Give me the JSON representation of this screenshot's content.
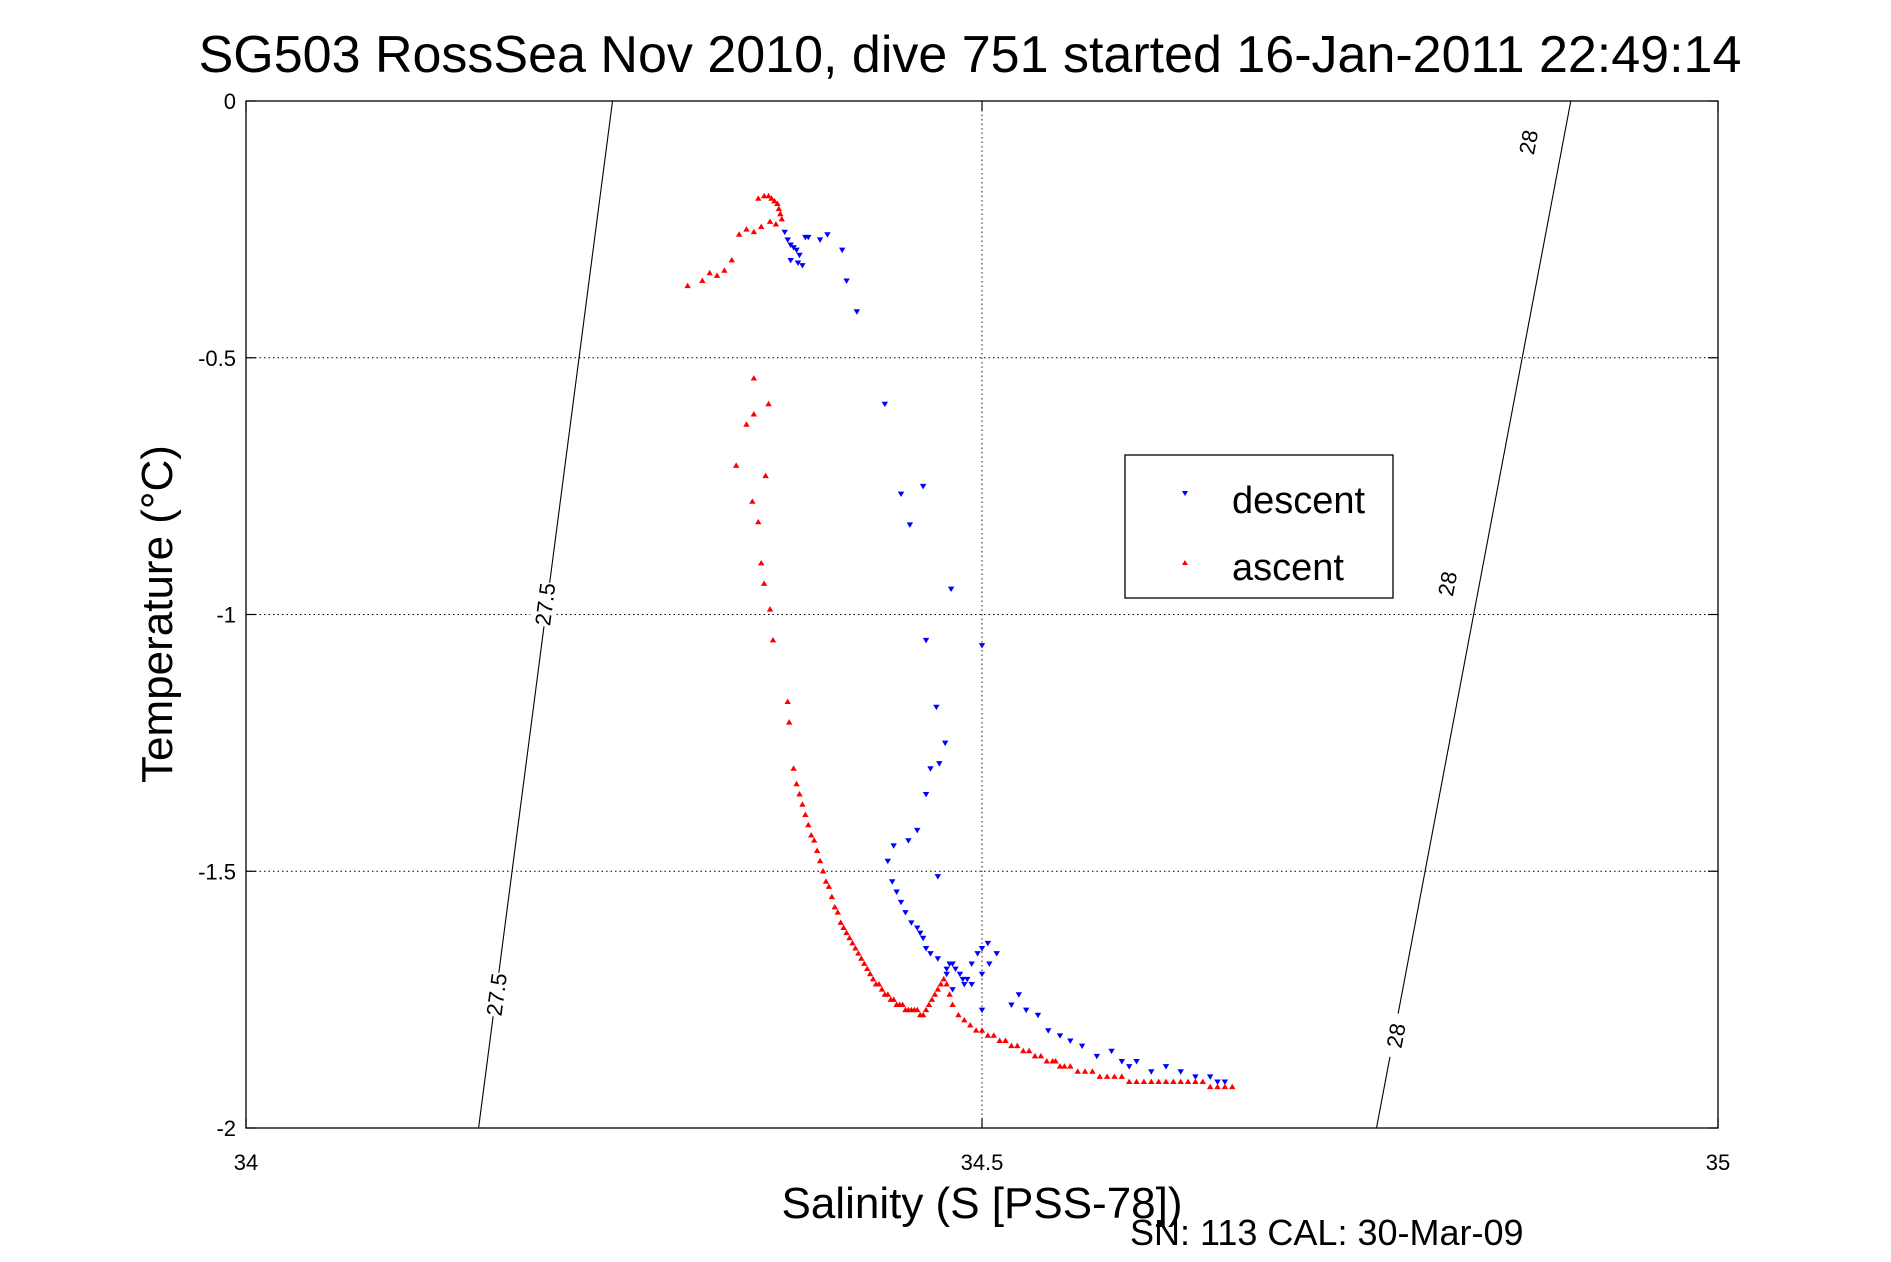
{
  "chart_data": {
    "type": "scatter",
    "title": "SG503 RossSea Nov 2010, dive 751 started 16-Jan-2011 22:49:14",
    "xlabel": "Salinity (S [PSS-78])",
    "ylabel": "Temperature (°C)",
    "footer": "SN: 113  CAL: 30-Mar-09",
    "xlim": [
      34,
      35
    ],
    "ylim": [
      -2,
      0
    ],
    "x_ticks": [
      34,
      34.5,
      35
    ],
    "x_tick_labels": [
      "34",
      "34.5",
      "35"
    ],
    "y_ticks": [
      0,
      -0.5,
      -1,
      -1.5,
      -2
    ],
    "y_tick_labels": [
      "0",
      "-0.5",
      "-1",
      "-1.5",
      "-2"
    ],
    "grid": true,
    "legend_position": "center-right",
    "series": [
      {
        "name": "descent",
        "color": "#0000ff",
        "marker": "triangle-down",
        "x": [
          34.366,
          34.368,
          34.37,
          34.372,
          34.374,
          34.376,
          34.37,
          34.375,
          34.378,
          34.38,
          34.382,
          34.39,
          34.395,
          34.405,
          34.408,
          34.415,
          34.434,
          34.445,
          34.451,
          34.46,
          34.479,
          34.462,
          34.475,
          34.471,
          34.465,
          34.469,
          34.5,
          34.462,
          34.456,
          34.47,
          34.45,
          34.44,
          34.436,
          34.439,
          34.442,
          34.445,
          34.448,
          34.452,
          34.456,
          34.458,
          34.46,
          34.462,
          34.465,
          34.47,
          34.476,
          34.48,
          34.485,
          34.488,
          34.49,
          34.493,
          34.497,
          34.5,
          34.504,
          34.51,
          34.505,
          34.5,
          34.493,
          34.487,
          34.482,
          34.478,
          34.476,
          34.48,
          34.5,
          34.52,
          34.525,
          34.53,
          34.538,
          34.545,
          34.553,
          34.56,
          34.568,
          34.578,
          34.588,
          34.595,
          34.6,
          34.605,
          34.615,
          34.625,
          34.635,
          34.645,
          34.655,
          34.66,
          34.665
        ],
        "y": [
          -0.255,
          -0.27,
          -0.28,
          -0.285,
          -0.29,
          -0.3,
          -0.31,
          -0.315,
          -0.32,
          -0.265,
          -0.265,
          -0.27,
          -0.26,
          -0.29,
          -0.35,
          -0.41,
          -0.59,
          -0.765,
          -0.825,
          -0.75,
          -0.95,
          -1.05,
          -1.25,
          -1.29,
          -1.3,
          -1.18,
          -1.06,
          -1.35,
          -1.42,
          -1.51,
          -1.44,
          -1.45,
          -1.48,
          -1.52,
          -1.54,
          -1.56,
          -1.58,
          -1.6,
          -1.61,
          -1.62,
          -1.63,
          -1.65,
          -1.66,
          -1.67,
          -1.69,
          -1.68,
          -1.7,
          -1.72,
          -1.71,
          -1.68,
          -1.66,
          -1.65,
          -1.64,
          -1.66,
          -1.68,
          -1.7,
          -1.72,
          -1.71,
          -1.69,
          -1.68,
          -1.7,
          -1.73,
          -1.77,
          -1.76,
          -1.74,
          -1.77,
          -1.78,
          -1.81,
          -1.82,
          -1.83,
          -1.84,
          -1.86,
          -1.85,
          -1.87,
          -1.88,
          -1.87,
          -1.89,
          -1.88,
          -1.89,
          -1.9,
          -1.9,
          -1.91,
          -1.91
        ]
      },
      {
        "name": "ascent",
        "color": "#ff0000",
        "marker": "triangle-up",
        "x": [
          34.348,
          34.352,
          34.355,
          34.357,
          34.359,
          34.361,
          34.362,
          34.363,
          34.364,
          34.36,
          34.356,
          34.35,
          34.345,
          34.34,
          34.335,
          34.33,
          34.325,
          34.32,
          34.315,
          34.31,
          34.3,
          34.345,
          34.355,
          34.345,
          34.34,
          34.353,
          34.333,
          34.344,
          34.348,
          34.35,
          34.352,
          34.356,
          34.358,
          34.368,
          34.369,
          34.372,
          34.374,
          34.376,
          34.378,
          34.38,
          34.382,
          34.384,
          34.386,
          34.388,
          34.39,
          34.392,
          34.394,
          34.396,
          34.398,
          34.4,
          34.402,
          34.404,
          34.406,
          34.408,
          34.41,
          34.412,
          34.414,
          34.416,
          34.418,
          34.42,
          34.422,
          34.424,
          34.426,
          34.428,
          34.43,
          34.432,
          34.434,
          34.436,
          34.438,
          34.44,
          34.442,
          34.444,
          34.446,
          34.448,
          34.45,
          34.452,
          34.454,
          34.456,
          34.458,
          34.46,
          34.462,
          34.464,
          34.466,
          34.468,
          34.47,
          34.472,
          34.474,
          34.476,
          34.478,
          34.48,
          34.484,
          34.488,
          34.492,
          34.496,
          34.5,
          34.504,
          34.508,
          34.512,
          34.516,
          34.52,
          34.524,
          34.528,
          34.532,
          34.536,
          34.54,
          34.544,
          34.548,
          34.55,
          34.553,
          34.556,
          34.56,
          34.565,
          34.57,
          34.575,
          34.58,
          34.585,
          34.59,
          34.595,
          34.6,
          34.605,
          34.61,
          34.615,
          34.62,
          34.625,
          34.63,
          34.635,
          34.64,
          34.645,
          34.65,
          34.655,
          34.66,
          34.665,
          34.67
        ],
        "y": [
          -0.19,
          -0.185,
          -0.185,
          -0.19,
          -0.195,
          -0.2,
          -0.21,
          -0.22,
          -0.23,
          -0.24,
          -0.235,
          -0.245,
          -0.255,
          -0.25,
          -0.26,
          -0.31,
          -0.33,
          -0.34,
          -0.335,
          -0.35,
          -0.36,
          -0.54,
          -0.59,
          -0.61,
          -0.63,
          -0.73,
          -0.71,
          -0.78,
          -0.82,
          -0.9,
          -0.94,
          -0.99,
          -1.05,
          -1.17,
          -1.21,
          -1.3,
          -1.33,
          -1.35,
          -1.37,
          -1.39,
          -1.41,
          -1.43,
          -1.44,
          -1.46,
          -1.48,
          -1.5,
          -1.52,
          -1.53,
          -1.55,
          -1.57,
          -1.58,
          -1.6,
          -1.61,
          -1.62,
          -1.63,
          -1.64,
          -1.65,
          -1.66,
          -1.67,
          -1.68,
          -1.69,
          -1.7,
          -1.71,
          -1.72,
          -1.72,
          -1.73,
          -1.74,
          -1.74,
          -1.75,
          -1.75,
          -1.76,
          -1.76,
          -1.76,
          -1.77,
          -1.77,
          -1.77,
          -1.77,
          -1.77,
          -1.78,
          -1.78,
          -1.77,
          -1.76,
          -1.75,
          -1.74,
          -1.73,
          -1.72,
          -1.71,
          -1.72,
          -1.74,
          -1.76,
          -1.78,
          -1.79,
          -1.8,
          -1.81,
          -1.81,
          -1.82,
          -1.82,
          -1.83,
          -1.83,
          -1.84,
          -1.84,
          -1.85,
          -1.85,
          -1.86,
          -1.86,
          -1.87,
          -1.87,
          -1.87,
          -1.88,
          -1.88,
          -1.88,
          -1.89,
          -1.89,
          -1.89,
          -1.9,
          -1.9,
          -1.9,
          -1.9,
          -1.91,
          -1.91,
          -1.91,
          -1.91,
          -1.91,
          -1.91,
          -1.91,
          -1.91,
          -1.91,
          -1.91,
          -1.91,
          -1.92,
          -1.92,
          -1.92,
          -1.92
        ]
      }
    ],
    "isopycnals": [
      {
        "label": "27.5",
        "x": [
          34.158,
          34.249
        ],
        "y": [
          -2,
          0
        ],
        "label_positions": [
          {
            "x": 34.17,
            "y": -1.74
          },
          {
            "x": 34.203,
            "y": -0.98
          }
        ]
      },
      {
        "label": "28",
        "x": [
          34.768,
          34.9
        ],
        "y": [
          -2,
          0
        ],
        "label_positions": [
          {
            "x": 34.781,
            "y": -1.82
          },
          {
            "x": 34.816,
            "y": -0.94
          },
          {
            "x": 34.871,
            "y": -0.08
          }
        ]
      }
    ]
  }
}
